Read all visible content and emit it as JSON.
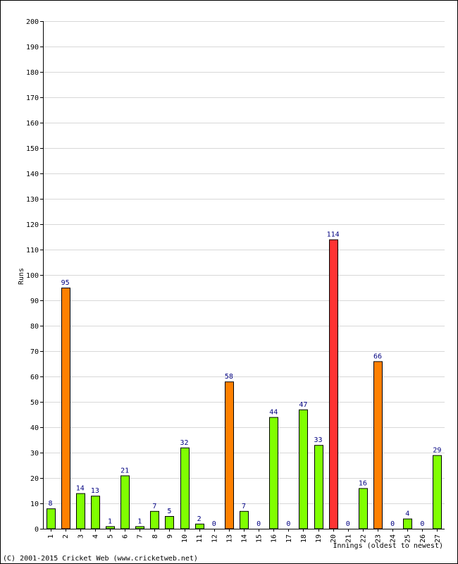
{
  "chart_data": {
    "type": "bar",
    "ylabel": "Runs",
    "xlabel": "Innings (oldest to newest)",
    "ylim": [
      0,
      200
    ],
    "ytick_step": 10,
    "grid": true,
    "categories": [
      "1",
      "2",
      "3",
      "4",
      "5",
      "6",
      "7",
      "8",
      "9",
      "10",
      "11",
      "12",
      "13",
      "14",
      "15",
      "16",
      "17",
      "18",
      "19",
      "20",
      "21",
      "22",
      "23",
      "24",
      "25",
      "26",
      "27"
    ],
    "values": [
      8,
      95,
      14,
      13,
      1,
      21,
      1,
      7,
      5,
      32,
      2,
      0,
      58,
      7,
      0,
      44,
      0,
      47,
      33,
      114,
      0,
      16,
      66,
      0,
      4,
      0,
      29
    ],
    "bar_colors": [
      "#80ff00",
      "#ff8000",
      "#80ff00",
      "#80ff00",
      "#80ff00",
      "#80ff00",
      "#80ff00",
      "#80ff00",
      "#80ff00",
      "#80ff00",
      "#80ff00",
      "#80ff00",
      "#ff8000",
      "#80ff00",
      "#80ff00",
      "#80ff00",
      "#80ff00",
      "#80ff00",
      "#80ff00",
      "#ff3333",
      "#80ff00",
      "#80ff00",
      "#ff8000",
      "#80ff00",
      "#80ff00",
      "#80ff00",
      "#80ff00"
    ],
    "colors": {
      "under_50": "#80ff00",
      "fifty": "#ff8000",
      "hundred": "#ff3333",
      "data_label": "#000080",
      "grid": "#d8d8d8"
    }
  },
  "footer": {
    "copyright": "(C) 2001-2015 Cricket Web (www.cricketweb.net)"
  }
}
